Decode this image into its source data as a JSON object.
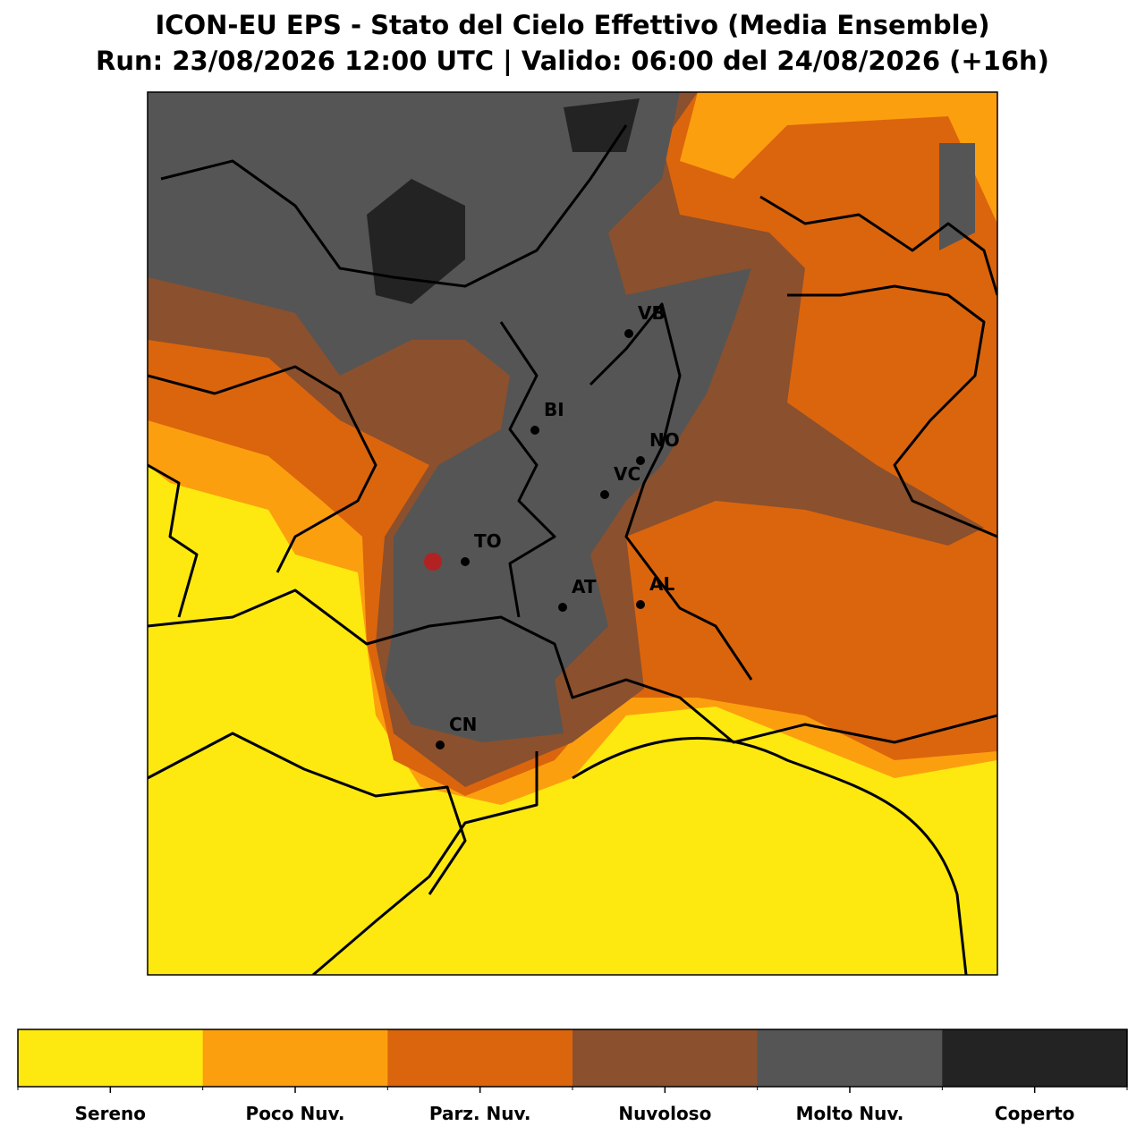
{
  "title": "ICON-EU EPS - Stato del Cielo Effettivo (Media Ensemble)",
  "subtitle": "Run: 23/08/2026 12:00 UTC | Valido: 06:00 del 24/08/2026 (+16h)",
  "cities": [
    {
      "label": "VB"
    },
    {
      "label": "BI"
    },
    {
      "label": "NO"
    },
    {
      "label": "VC"
    },
    {
      "label": "TO"
    },
    {
      "label": "AT"
    },
    {
      "label": "AL"
    },
    {
      "label": "CN"
    }
  ],
  "legend": {
    "classes": [
      {
        "label": "Sereno",
        "color": "#fde910"
      },
      {
        "label": "Poco Nuv.",
        "color": "#fc9f0f"
      },
      {
        "label": "Parz. Nuv.",
        "color": "#db650c"
      },
      {
        "label": "Nuvoloso",
        "color": "#8b502e"
      },
      {
        "label": "Molto Nuv.",
        "color": "#555555"
      },
      {
        "label": "Coperto",
        "color": "#232323"
      }
    ]
  }
}
